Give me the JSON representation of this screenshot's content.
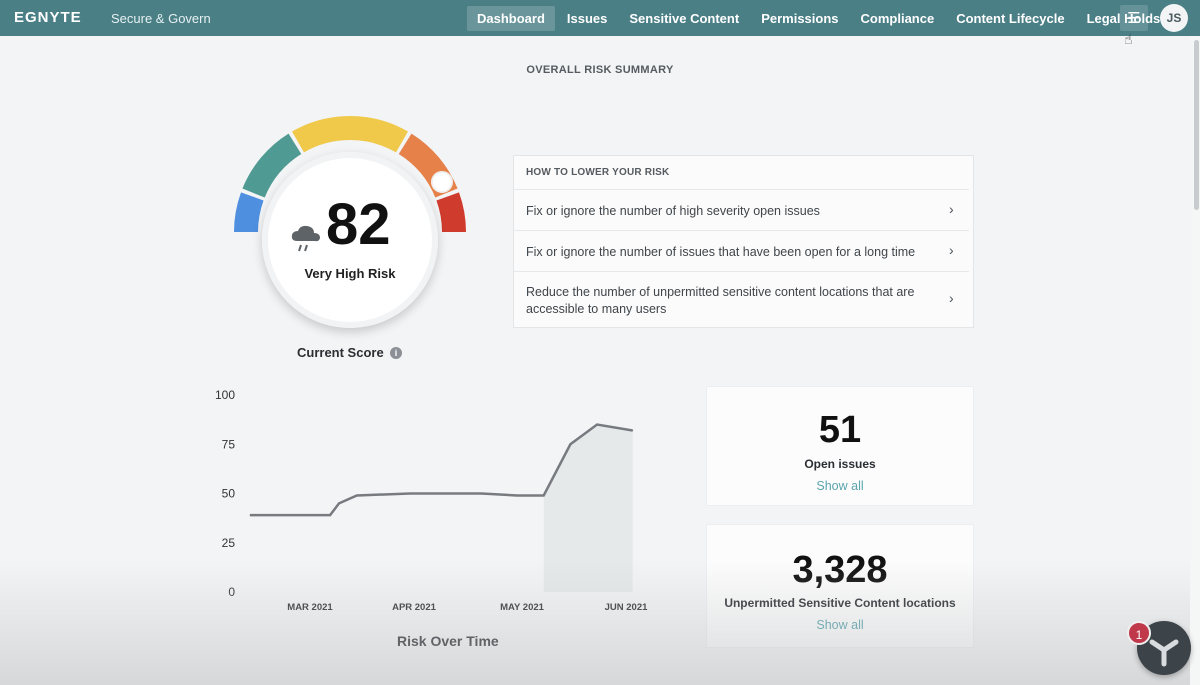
{
  "header": {
    "logo": "EGNYTE",
    "product": "Secure & Govern",
    "nav": [
      {
        "label": "Dashboard",
        "active": true
      },
      {
        "label": "Issues",
        "active": false
      },
      {
        "label": "Sensitive Content",
        "active": false
      },
      {
        "label": "Permissions",
        "active": false
      },
      {
        "label": "Compliance",
        "active": false
      },
      {
        "label": "Content Lifecycle",
        "active": false
      },
      {
        "label": "Legal Holds",
        "active": false
      }
    ],
    "menu_icon": "hamburger-icon",
    "avatar_initials": "JS",
    "accent_color": "#4a7f86"
  },
  "summary": {
    "title": "OVERALL RISK SUMMARY",
    "score": "82",
    "score_level": "Very High Risk",
    "score_icon": "rain-cloud-icon",
    "current_score_label": "Current Score",
    "info_icon": "i",
    "gauge_colors": [
      "#4f8fe0",
      "#4f9a93",
      "#f0c94a",
      "#e6814a",
      "#cf3b2c"
    ]
  },
  "lower_risk": {
    "title": "HOW TO LOWER YOUR RISK",
    "items": [
      {
        "text": "Fix or ignore the number of high severity open issues"
      },
      {
        "text": "Fix or ignore the number of issues that have been open for a long time"
      },
      {
        "text": "Reduce the number of unpermitted sensitive content locations that are accessible to many users"
      }
    ]
  },
  "stats": {
    "open_issues": {
      "value": "51",
      "label": "Open issues",
      "link": "Show all"
    },
    "unpermitted": {
      "value": "3,328",
      "label": "Unpermitted Sensitive Content locations",
      "link": "Show all"
    }
  },
  "help": {
    "badge": "1"
  },
  "chart_data": {
    "type": "line",
    "title": "Risk Over Time",
    "y_ticks": [
      "100",
      "75",
      "50",
      "25",
      "0"
    ],
    "x_ticks": [
      "MAR 2021",
      "APR 2021",
      "MAY 2021",
      "JUN 2021"
    ],
    "ylim": [
      0,
      100
    ],
    "grid": false,
    "series": [
      {
        "color": "#777b80",
        "x": [
          0,
          0.14,
          0.18,
          0.2,
          0.24,
          0.36,
          0.52,
          0.6,
          0.64,
          0.66,
          0.72,
          0.78,
          0.86
        ],
        "values": [
          39,
          39,
          39,
          45,
          49,
          50,
          50,
          49,
          49,
          49,
          75,
          85,
          82
        ]
      }
    ]
  }
}
